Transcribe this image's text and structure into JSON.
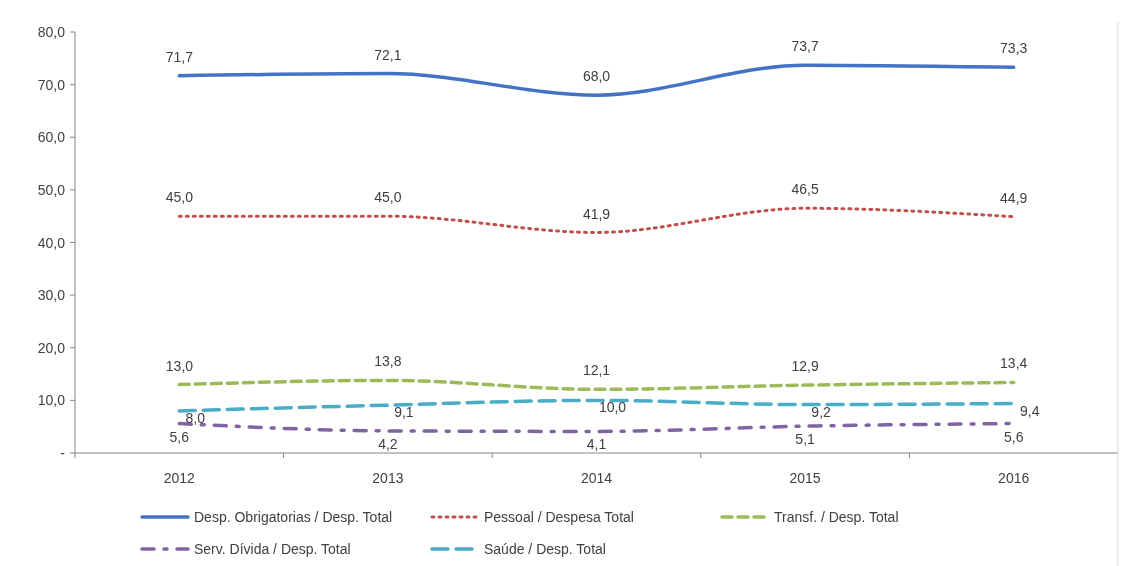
{
  "chart_data": {
    "type": "line",
    "categories": [
      "2012",
      "2013",
      "2014",
      "2015",
      "2016"
    ],
    "ylim": [
      0,
      80
    ],
    "yticks": [
      {
        "value": 0,
        "label": "-"
      },
      {
        "value": 10,
        "label": "10,0"
      },
      {
        "value": 20,
        "label": "20,0"
      },
      {
        "value": 30,
        "label": "30,0"
      },
      {
        "value": 40,
        "label": "40,0"
      },
      {
        "value": 50,
        "label": "50,0"
      },
      {
        "value": 60,
        "label": "60,0"
      },
      {
        "value": 70,
        "label": "70,0"
      },
      {
        "value": 80,
        "label": "80,0"
      }
    ],
    "grid": false,
    "legend": "bottom",
    "marker": "none",
    "series": [
      {
        "name": "Desp. Obrigatorias / Desp. Total",
        "color": "#4472c4",
        "line_style": "solid",
        "values": [
          71.7,
          72.1,
          68.0,
          73.7,
          73.3
        ],
        "value_labels": [
          "71,7",
          "72,1",
          "68,0",
          "73,7",
          "73,3"
        ]
      },
      {
        "name": "Pessoal / Despesa Total",
        "color": "#c0504d",
        "line_style": "dotted",
        "values": [
          45.0,
          45.0,
          41.9,
          46.5,
          44.9
        ],
        "value_labels": [
          "45,0",
          "45,0",
          "41,9",
          "46,5",
          "44,9"
        ]
      },
      {
        "name": "Transf. / Desp. Total",
        "color": "#9bbb59",
        "line_style": "dashed",
        "values": [
          13.0,
          13.8,
          12.1,
          12.9,
          13.4
        ],
        "value_labels": [
          "13,0",
          "13,8",
          "12,1",
          "12,9",
          "13,4"
        ]
      },
      {
        "name": "Serv. Dívida / Desp. Total",
        "color": "#8064a2",
        "line_style": "dashdot",
        "values": [
          5.6,
          4.2,
          4.1,
          5.1,
          5.6
        ],
        "value_labels": [
          "5,6",
          "4,2",
          "4,1",
          "5,1",
          "5,6"
        ]
      },
      {
        "name": "Saúde / Desp. Total",
        "color": "#4bacc6",
        "line_style": "longdash",
        "values": [
          8.0,
          9.1,
          10.0,
          9.2,
          9.4
        ],
        "value_labels": [
          "8,0",
          "9,1",
          "10,0",
          "9,2",
          "9,4"
        ]
      }
    ]
  }
}
